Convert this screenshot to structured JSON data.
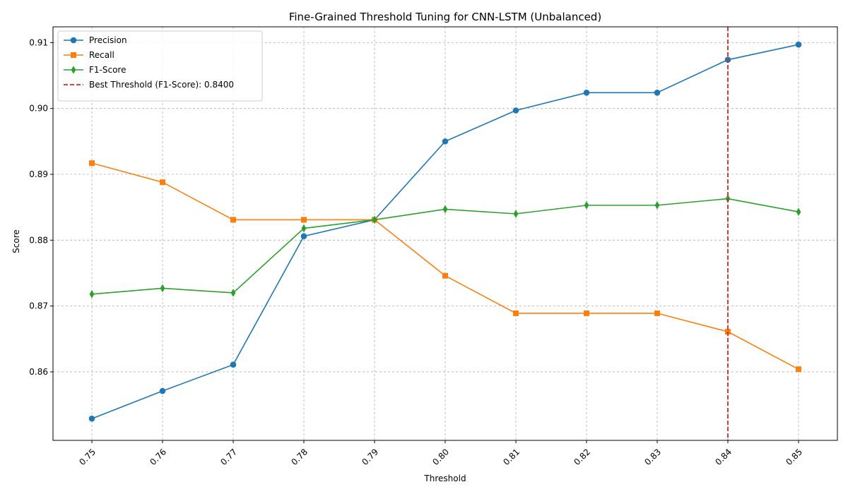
{
  "chart_data": {
    "type": "line",
    "title": "Fine-Grained Threshold Tuning for CNN-LSTM (Unbalanced)",
    "xlabel": "Threshold",
    "ylabel": "Score",
    "x": [
      0.75,
      0.76,
      0.77,
      0.78,
      0.79,
      0.8,
      0.81,
      0.82,
      0.83,
      0.84,
      0.85
    ],
    "x_tick_labels": [
      "0.75",
      "0.76",
      "0.77",
      "0.78",
      "0.79",
      "0.80",
      "0.81",
      "0.82",
      "0.83",
      "0.84",
      "0.85"
    ],
    "y_ticks": [
      0.86,
      0.87,
      0.88,
      0.89,
      0.9,
      0.91
    ],
    "y_tick_labels": [
      "0.86",
      "0.87",
      "0.88",
      "0.89",
      "0.90",
      "0.91"
    ],
    "xlim": [
      0.7445,
      0.8555
    ],
    "ylim": [
      0.8496,
      0.9124
    ],
    "grid": true,
    "legend_position": "top-left",
    "series": [
      {
        "name": "Precision",
        "color": "#1f77b4",
        "marker": "circle",
        "values": [
          0.8529,
          0.8571,
          0.8611,
          0.8806,
          0.8831,
          0.895,
          0.8997,
          0.9024,
          0.9024,
          0.9074,
          0.9097
        ]
      },
      {
        "name": "Recall",
        "color": "#ff7f0e",
        "marker": "square",
        "values": [
          0.8917,
          0.8888,
          0.8831,
          0.8831,
          0.8831,
          0.8746,
          0.8689,
          0.8689,
          0.8689,
          0.8661,
          0.8604
        ]
      },
      {
        "name": "F1-Score",
        "color": "#2ca02c",
        "marker": "diamond",
        "values": [
          0.8718,
          0.8727,
          0.872,
          0.8818,
          0.8831,
          0.8847,
          0.884,
          0.8853,
          0.8853,
          0.8863,
          0.8843
        ]
      }
    ],
    "reference_line": {
      "label": "Best Threshold (F1-Score): 0.8400",
      "x": 0.84,
      "color": "#d62728",
      "style": "dashed"
    }
  }
}
